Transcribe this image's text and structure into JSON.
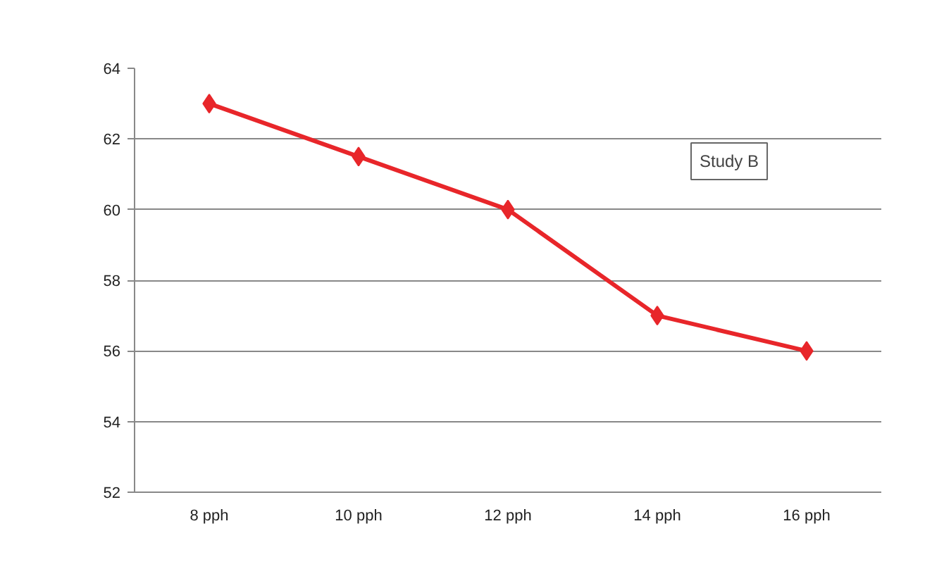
{
  "chart_data": {
    "type": "line",
    "categories": [
      "8 pph",
      "10 pph",
      "12 pph",
      "14 pph",
      "16 pph"
    ],
    "series": [
      {
        "color": "#e8262a",
        "values": [
          63,
          61.5,
          60,
          57,
          56
        ]
      }
    ],
    "ylim": [
      52,
      64
    ],
    "yticks": [
      52,
      54,
      56,
      58,
      60,
      62,
      64
    ],
    "grid": "y",
    "marker": "diamond",
    "line_style": "solid",
    "annotations": [
      "Study B"
    ]
  }
}
